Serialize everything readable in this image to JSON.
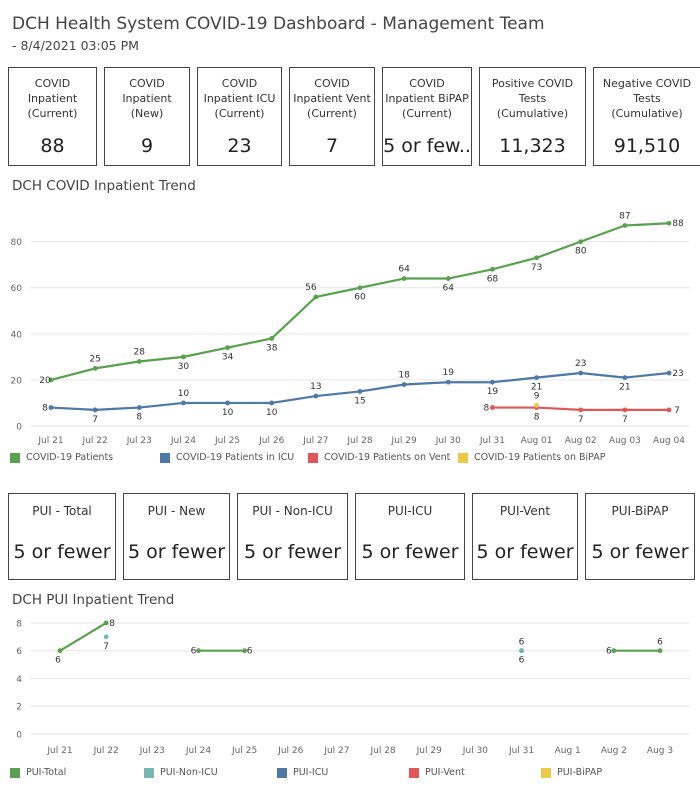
{
  "header": {
    "title": "DCH Health System COVID-19 Dashboard - Management Team",
    "subtitle": "- 8/4/2021 03:05 PM"
  },
  "kpis": [
    {
      "label": "COVID\nInpatient\n(Current)",
      "value": "88"
    },
    {
      "label": "COVID\nInpatient\n(New)",
      "value": "9"
    },
    {
      "label": "COVID\nInpatient ICU\n(Current)",
      "value": "23"
    },
    {
      "label": "COVID\nInpatient Vent\n(Current)",
      "value": "7"
    },
    {
      "label": "COVID\nInpatient BiPAP\n(Current)",
      "value": "5 or few.."
    },
    {
      "label": "Positive COVID\nTests\n(Cumulative)",
      "value": "11,323"
    },
    {
      "label": "Negative COVID\nTests\n(Cumulative)",
      "value": "91,510"
    }
  ],
  "pui_kpis": [
    {
      "label": "PUI - Total",
      "value": "5 or fewer"
    },
    {
      "label": "PUI - New",
      "value": "5 or fewer"
    },
    {
      "label": "PUI - Non-ICU",
      "value": "5 or fewer"
    },
    {
      "label": "PUI-ICU",
      "value": "5 or fewer"
    },
    {
      "label": "PUI-Vent",
      "value": "5 or fewer"
    },
    {
      "label": "PUI-BiPAP",
      "value": "5 or fewer"
    }
  ],
  "chart_data": [
    {
      "type": "line",
      "title": "DCH COVID Inpatient Trend",
      "categories": [
        "Jul 21",
        "Jul 22",
        "Jul 23",
        "Jul 24",
        "Jul 25",
        "Jul 26",
        "Jul 27",
        "Jul 28",
        "Jul 29",
        "Jul 30",
        "Jul 31",
        "Aug 01",
        "Aug 02",
        "Aug 03",
        "Aug 04"
      ],
      "ylim": [
        0,
        92
      ],
      "yticks": [
        0,
        20,
        40,
        60,
        80
      ],
      "grid": true,
      "legend_placement": "bottom",
      "series": [
        {
          "name": "COVID-19 Patients",
          "color": "#59a14f",
          "values": [
            20,
            25,
            28,
            30,
            34,
            38,
            56,
            60,
            64,
            64,
            68,
            73,
            80,
            87,
            88
          ]
        },
        {
          "name": "COVID-19 Patients in ICU",
          "color": "#4e79a7",
          "values": [
            8,
            7,
            8,
            10,
            10,
            10,
            13,
            15,
            18,
            19,
            19,
            21,
            23,
            21,
            23
          ]
        },
        {
          "name": "COVID-19 Patients on Vent",
          "color": "#e15759",
          "values": [
            null,
            null,
            null,
            null,
            null,
            null,
            null,
            null,
            null,
            null,
            8,
            8,
            7,
            7,
            7
          ]
        },
        {
          "name": "COVID-19 Patients on BiPAP",
          "color": "#edc948",
          "values": [
            null,
            null,
            null,
            null,
            null,
            null,
            null,
            null,
            null,
            null,
            null,
            9,
            null,
            null,
            null
          ]
        }
      ]
    },
    {
      "type": "line",
      "title": "DCH PUI Inpatient Trend",
      "categories": [
        "Jul 21",
        "Jul 22",
        "Jul 23",
        "Jul 24",
        "Jul 25",
        "Jul 26",
        "Jul 27",
        "Jul 28",
        "Jul 29",
        "Jul 30",
        "Jul 31",
        "Aug 1",
        "Aug 2",
        "Aug 3"
      ],
      "ylim": [
        0,
        8.5
      ],
      "yticks": [
        0,
        2,
        4,
        6,
        8
      ],
      "grid": true,
      "legend_placement": "bottom",
      "series": [
        {
          "name": "PUI-Total",
          "color": "#59a14f",
          "values": [
            6,
            8,
            null,
            6,
            6,
            null,
            null,
            null,
            null,
            null,
            6,
            null,
            6,
            6
          ]
        },
        {
          "name": "PUI-Non-ICU",
          "color": "#76b7b2",
          "values": [
            null,
            7,
            null,
            null,
            null,
            null,
            null,
            null,
            null,
            null,
            6,
            null,
            null,
            null
          ]
        },
        {
          "name": "PUI-ICU",
          "color": "#4e79a7",
          "values": [
            null,
            null,
            null,
            null,
            null,
            null,
            null,
            null,
            null,
            null,
            null,
            null,
            null,
            null
          ]
        },
        {
          "name": "PUI-Vent",
          "color": "#e15759",
          "values": [
            null,
            null,
            null,
            null,
            null,
            null,
            null,
            null,
            null,
            null,
            null,
            null,
            null,
            null
          ]
        },
        {
          "name": "PUI-BiPAP",
          "color": "#edc948",
          "values": [
            null,
            null,
            null,
            null,
            null,
            null,
            null,
            null,
            null,
            null,
            null,
            null,
            null,
            null
          ]
        }
      ]
    }
  ]
}
